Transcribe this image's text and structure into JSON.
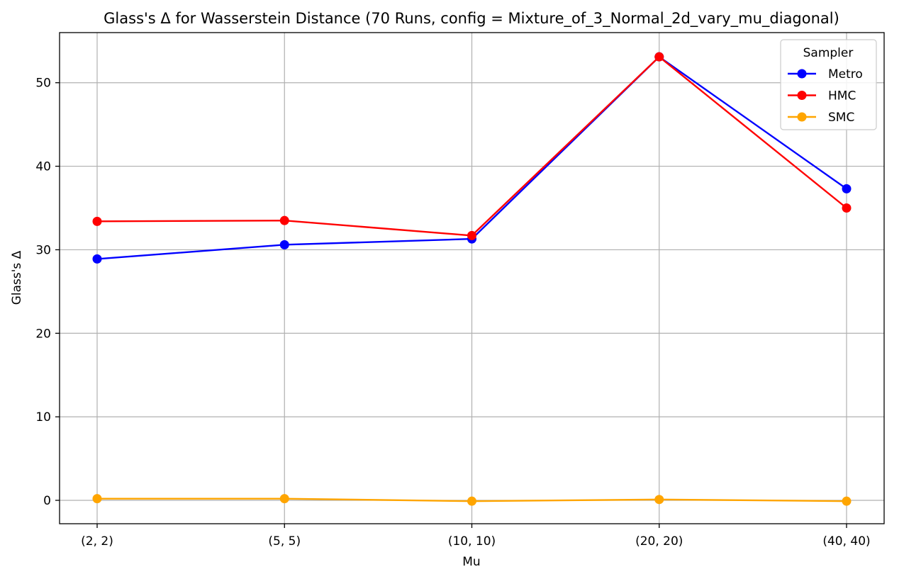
{
  "chart_data": {
    "type": "line",
    "title": "Glass's Δ for Wasserstein Distance (70 Runs, config = Mixture_of_3_Normal_2d_vary_mu_diagonal)",
    "xlabel": "Mu",
    "ylabel": "Glass's Δ",
    "categories": [
      "(2, 2)",
      "(5, 5)",
      "(10, 10)",
      "(20, 20)",
      "(40, 40)"
    ],
    "ylim": [
      -2.8,
      56
    ],
    "yticks": [
      0,
      10,
      20,
      30,
      40,
      50
    ],
    "grid": true,
    "legend": {
      "title": "Sampler",
      "placement": "top-right"
    },
    "series": [
      {
        "name": "Metro",
        "color": "#0000ff",
        "values": [
          28.9,
          30.6,
          31.3,
          53.1,
          37.3
        ]
      },
      {
        "name": "HMC",
        "color": "#ff0000",
        "values": [
          33.4,
          33.5,
          31.7,
          53.1,
          35.0
        ]
      },
      {
        "name": "SMC",
        "color": "#ffa500",
        "values": [
          0.2,
          0.2,
          -0.1,
          0.1,
          -0.1
        ]
      }
    ]
  }
}
